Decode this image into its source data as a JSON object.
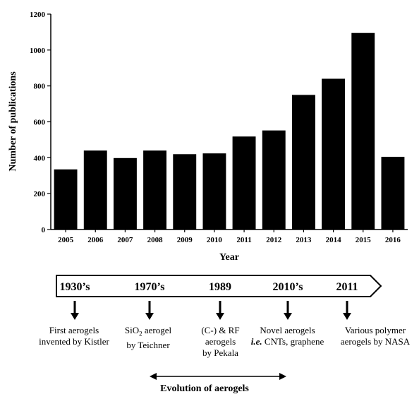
{
  "chart_data": {
    "type": "bar",
    "categories": [
      "2005",
      "2006",
      "2007",
      "2008",
      "2009",
      "2010",
      "2011",
      "2012",
      "2013",
      "2014",
      "2015",
      "2016"
    ],
    "values": [
      335,
      440,
      398,
      440,
      420,
      424,
      518,
      552,
      750,
      840,
      1095,
      405
    ],
    "title": "",
    "xlabel": "Year",
    "ylabel": "Number of publications",
    "ylim": [
      0,
      1200
    ],
    "yticks": [
      0,
      200,
      400,
      600,
      800,
      1000,
      1200
    ],
    "color": "#000000",
    "grid": false,
    "legend": "none"
  },
  "timeline": {
    "title": "Evolution of aerogels",
    "milestones": [
      {
        "year": "1930’s",
        "desc_lines": [
          "First aerogels",
          "invented by Kistler"
        ]
      },
      {
        "year": "1970’s",
        "desc_lines": [
          "SiO",
          "2",
          " aerogel",
          "by Teichner"
        ]
      },
      {
        "year": "1989",
        "desc_lines": [
          "(C-) & RF",
          "aerogels",
          "by Pekala"
        ]
      },
      {
        "year": "2010’s",
        "desc_lines": [
          "Novel aerogels",
          "i.e.",
          " CNTs, graphene"
        ]
      },
      {
        "year": "2011",
        "desc_lines": [
          "Various polymer",
          "aerogels by NASA"
        ]
      }
    ]
  }
}
